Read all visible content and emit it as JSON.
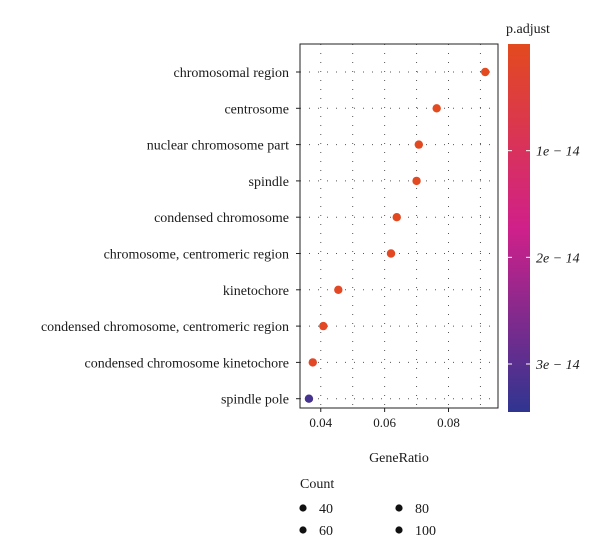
{
  "chart_data": {
    "type": "scatter",
    "variant": "dot-plot",
    "xlabel": "GeneRatio",
    "ylabel": "",
    "xlim": [
      0.0335,
      0.0955
    ],
    "x_ticks": [
      0.04,
      0.06,
      0.08
    ],
    "x_tick_labels": [
      "0.04",
      "0.06",
      "0.08"
    ],
    "grid": "dotted",
    "categories": [
      "chromosomal region",
      "centrosome",
      "nuclear chromosome part",
      "spindle",
      "condensed chromosome",
      "chromosome, centromeric region",
      "kinetochore",
      "condensed chromosome, centromeric region",
      "condensed chromosome kinetochore",
      "spindle pole"
    ],
    "points": [
      {
        "term": "chromosomal region",
        "gene_ratio": 0.0915,
        "p_adjust": 1e-16
      },
      {
        "term": "centrosome",
        "gene_ratio": 0.0763,
        "p_adjust": 2e-16
      },
      {
        "term": "nuclear chromosome part",
        "gene_ratio": 0.0707,
        "p_adjust": 3e-16
      },
      {
        "term": "spindle",
        "gene_ratio": 0.07,
        "p_adjust": 4e-16
      },
      {
        "term": "condensed chromosome",
        "gene_ratio": 0.0638,
        "p_adjust": 5e-16
      },
      {
        "term": "chromosome, centromeric region",
        "gene_ratio": 0.062,
        "p_adjust": 6e-16
      },
      {
        "term": "kinetochore",
        "gene_ratio": 0.0455,
        "p_adjust": 8e-16
      },
      {
        "term": "condensed chromosome, centromeric region",
        "gene_ratio": 0.0408,
        "p_adjust": 1e-15
      },
      {
        "term": "condensed chromosome kinetochore",
        "gene_ratio": 0.0375,
        "p_adjust": 1.3e-15
      },
      {
        "term": "spindle pole",
        "gene_ratio": 0.0363,
        "p_adjust": 3.2e-14
      }
    ],
    "color_legend": {
      "title": "p.adjust",
      "range": [
        0,
        3.45e-14
      ],
      "low_color": "#e34a1e",
      "mid_color": "#d0208a",
      "high_color": "#2f3590",
      "ticks": [
        {
          "value": 1e-14,
          "label": "1e − 14"
        },
        {
          "value": 2e-14,
          "label": "2e − 14"
        },
        {
          "value": 3e-14,
          "label": "3e − 14"
        }
      ]
    },
    "size_legend": {
      "title": "Count",
      "entries": [
        {
          "value": 40,
          "label": "40"
        },
        {
          "value": 60,
          "label": "60"
        },
        {
          "value": 80,
          "label": "80"
        },
        {
          "value": 100,
          "label": "100"
        }
      ]
    }
  }
}
